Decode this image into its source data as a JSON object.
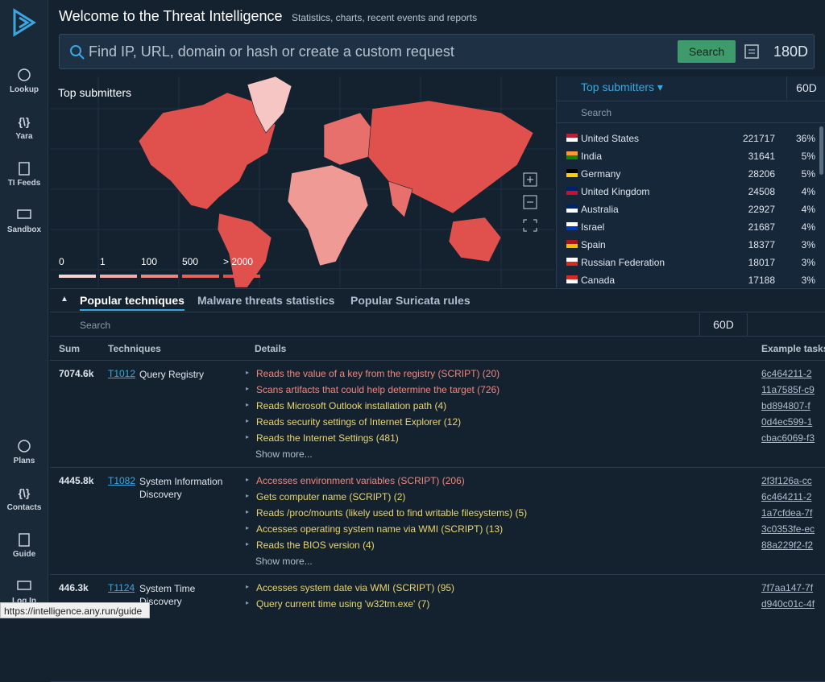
{
  "sidebar": {
    "top": [
      "Lookup",
      "Yara",
      "TI Feeds",
      "Sandbox"
    ],
    "bottom": [
      "Plans",
      "Contacts",
      "Guide",
      "Log In"
    ]
  },
  "header": {
    "title": "Welcome to the Threat Intelligence",
    "subtitle": "Statistics, charts, recent events and reports"
  },
  "search": {
    "placeholder": "Find IP, URL, domain or hash or create a custom request",
    "button": "Search",
    "period": "180D"
  },
  "map": {
    "title": "Top submitters",
    "legend": [
      "0",
      "1",
      "100",
      "500",
      "> 2000"
    ]
  },
  "submitters": {
    "title": "Top submitters",
    "period": "60D",
    "search": "Search",
    "rows": [
      [
        "United States",
        "221717",
        "36%"
      ],
      [
        "India",
        "31641",
        "5%"
      ],
      [
        "Germany",
        "28206",
        "5%"
      ],
      [
        "United Kingdom",
        "24508",
        "4%"
      ],
      [
        "Australia",
        "22927",
        "4%"
      ],
      [
        "Israel",
        "21687",
        "4%"
      ],
      [
        "Spain",
        "18377",
        "3%"
      ],
      [
        "Russian Federation",
        "18017",
        "3%"
      ],
      [
        "Canada",
        "17188",
        "3%"
      ]
    ]
  },
  "tabs": [
    "Popular techniques",
    "Malware threats statistics",
    "Popular Suricata rules"
  ],
  "toolbar": {
    "search": "Search",
    "period": "60D"
  },
  "table": {
    "columns": [
      "Sum",
      "Techniques",
      "Details",
      "Example tasks"
    ],
    "rows": [
      {
        "sum": "7074.6k",
        "id": "T1012",
        "name": "Query Registry",
        "details": [
          {
            "text": "Reads the value of a key from the registry (SCRIPT) (20)",
            "color": "#f0857d"
          },
          {
            "text": "Scans artifacts that could help determine the target (726)",
            "color": "#f0857d"
          },
          {
            "text": "Reads Microsoft Outlook installation path (4)",
            "color": "#e8d56e"
          },
          {
            "text": "Reads security settings of Internet Explorer (12)",
            "color": "#e8d56e"
          },
          {
            "text": "Reads the Internet Settings (481)",
            "color": "#e8d56e"
          }
        ],
        "more": "Show more...",
        "tasks": [
          "6c464211-2",
          "11a7585f-c9",
          "bd894807-f",
          "0d4ec599-1",
          "cbac6069-f3"
        ]
      },
      {
        "sum": "4445.8k",
        "id": "T1082",
        "name": "System Information Discovery",
        "details": [
          {
            "text": "Accesses environment variables (SCRIPT) (206)",
            "color": "#f0857d"
          },
          {
            "text": "Gets computer name (SCRIPT) (2)",
            "color": "#e8d56e"
          },
          {
            "text": "Reads /proc/mounts (likely used to find writable filesystems) (5)",
            "color": "#e8d56e"
          },
          {
            "text": "Accesses operating system name via WMI (SCRIPT) (13)",
            "color": "#e8d56e"
          },
          {
            "text": "Reads the BIOS version (4)",
            "color": "#e8d56e"
          }
        ],
        "more": "Show more...",
        "tasks": [
          "2f3f126a-cc",
          "6c464211-2",
          "1a7cfdea-7f",
          "3c0353fe-ec",
          "88a229f2-f2"
        ]
      },
      {
        "sum": "446.3k",
        "id": "T1124",
        "name": "System Time Discovery",
        "details": [
          {
            "text": "Accesses system date via WMI (SCRIPT) (95)",
            "color": "#e8d56e"
          },
          {
            "text": "Query current time using 'w32tm.exe' (7)",
            "color": "#e8d56e"
          }
        ],
        "tasks": [
          "7f7aa147-7f",
          "d940c01c-4f"
        ]
      }
    ]
  },
  "status": "https://intelligence.any.run/guide"
}
